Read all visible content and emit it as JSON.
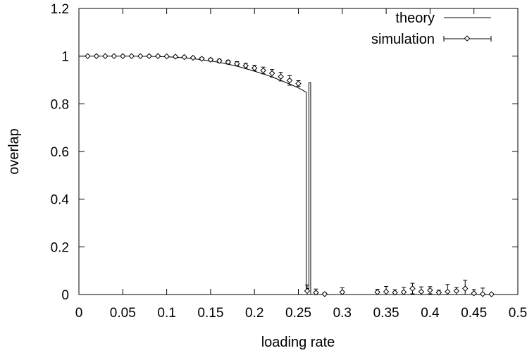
{
  "chart_data": {
    "type": "line",
    "xlabel": "loading rate",
    "ylabel": "overlap",
    "xlim": [
      0,
      0.5
    ],
    "ylim": [
      0,
      1.2
    ],
    "xticks": [
      "0",
      "0.05",
      "0.1",
      "0.15",
      "0.2",
      "0.25",
      "0.3",
      "0.35",
      "0.4",
      "0.45",
      "0.5"
    ],
    "yticks": [
      "0",
      "0.2",
      "0.4",
      "0.6",
      "0.8",
      "1",
      "1.2"
    ],
    "grid": false,
    "legend_position": "top-right",
    "series": [
      {
        "name": "theory",
        "style": "line",
        "x": [
          0,
          0.02,
          0.04,
          0.06,
          0.08,
          0.1,
          0.12,
          0.14,
          0.16,
          0.18,
          0.2,
          0.22,
          0.24,
          0.25,
          0.255,
          0.259,
          0.259,
          0.262,
          0.262,
          0.264,
          0.264,
          0.5
        ],
        "y": [
          1.0,
          1.0,
          1.0,
          1.0,
          0.999,
          0.997,
          0.993,
          0.985,
          0.974,
          0.958,
          0.937,
          0.913,
          0.883,
          0.867,
          0.857,
          0.848,
          0.025,
          0.025,
          0.888,
          0.888,
          0.0,
          0.0
        ]
      },
      {
        "name": "simulation",
        "style": "points-errorbars",
        "x": [
          0.01,
          0.02,
          0.03,
          0.04,
          0.05,
          0.06,
          0.07,
          0.08,
          0.09,
          0.1,
          0.11,
          0.12,
          0.13,
          0.14,
          0.15,
          0.16,
          0.17,
          0.18,
          0.19,
          0.2,
          0.21,
          0.22,
          0.23,
          0.24,
          0.25,
          0.26,
          0.27,
          0.28,
          0.3,
          0.34,
          0.35,
          0.36,
          0.37,
          0.38,
          0.39,
          0.4,
          0.41,
          0.42,
          0.43,
          0.44,
          0.45,
          0.46,
          0.47
        ],
        "y": [
          1.0,
          1.0,
          1.0,
          1.0,
          1.0,
          1.0,
          1.0,
          1.0,
          1.0,
          0.999,
          0.998,
          0.996,
          0.993,
          0.989,
          0.985,
          0.98,
          0.975,
          0.968,
          0.96,
          0.95,
          0.94,
          0.928,
          0.914,
          0.898,
          0.885,
          0.015,
          0.008,
          0.002,
          0.01,
          0.01,
          0.012,
          0.008,
          0.01,
          0.025,
          0.012,
          0.018,
          0.008,
          0.012,
          0.015,
          0.025,
          0.005,
          0.002,
          0.001
        ],
        "err": [
          0.002,
          0.002,
          0.002,
          0.002,
          0.002,
          0.002,
          0.002,
          0.002,
          0.002,
          0.002,
          0.003,
          0.003,
          0.004,
          0.005,
          0.006,
          0.007,
          0.008,
          0.009,
          0.01,
          0.012,
          0.014,
          0.016,
          0.018,
          0.02,
          0.012,
          0.025,
          0.015,
          0.005,
          0.018,
          0.012,
          0.022,
          0.012,
          0.02,
          0.022,
          0.02,
          0.015,
          0.01,
          0.03,
          0.015,
          0.035,
          0.015,
          0.025,
          0.003
        ]
      }
    ]
  }
}
